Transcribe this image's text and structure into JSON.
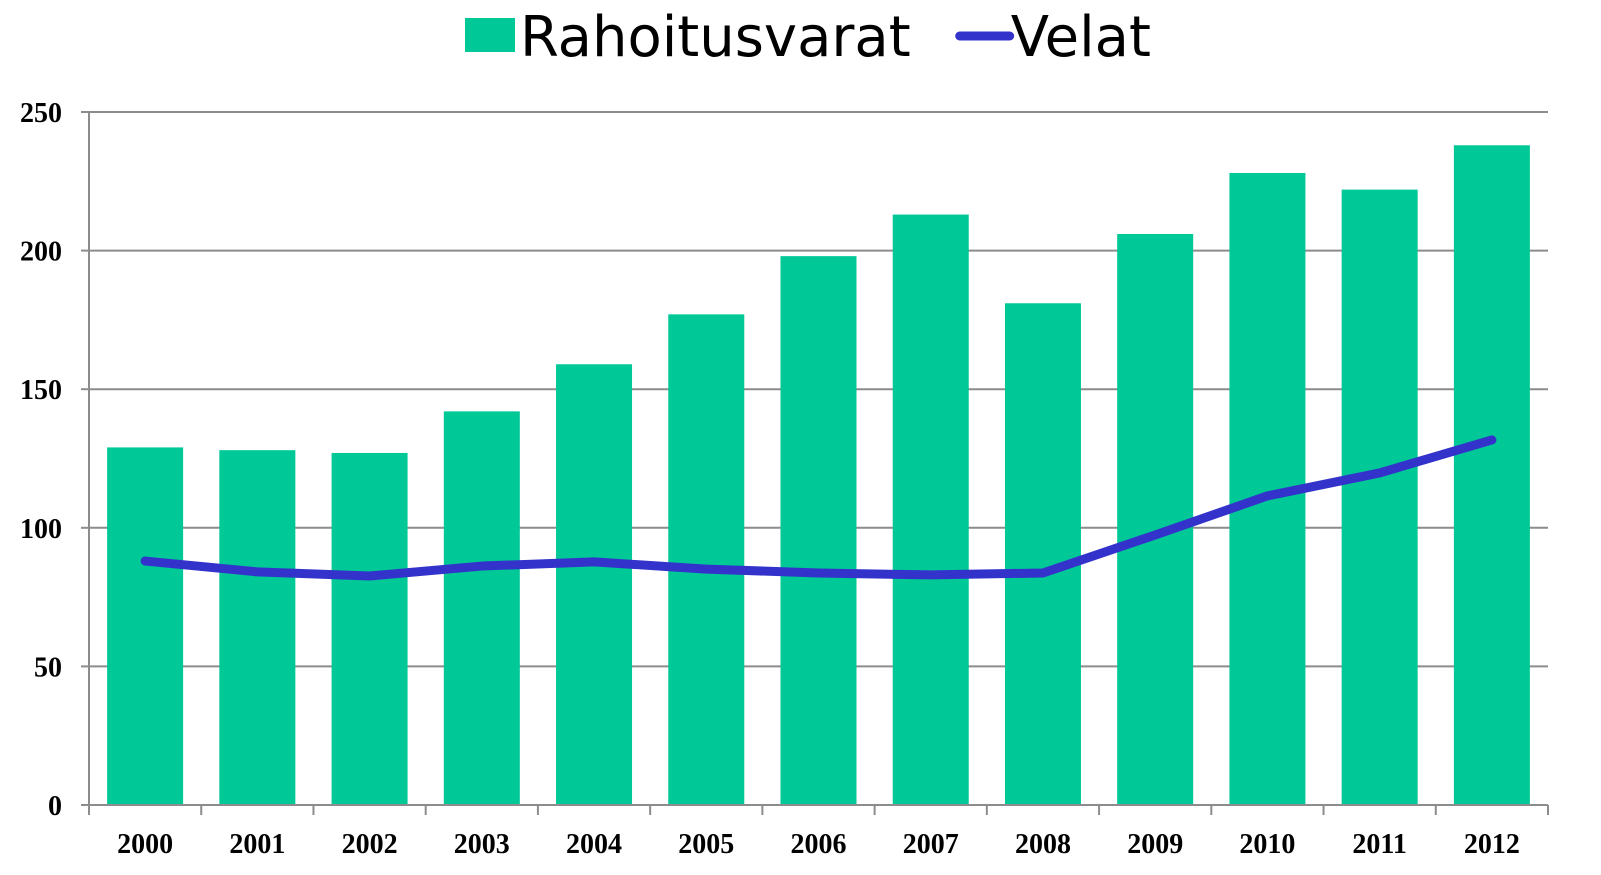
{
  "chart_data": {
    "type": "bar",
    "categories": [
      "2000",
      "2001",
      "2002",
      "2003",
      "2004",
      "2005",
      "2006",
      "2007",
      "2008",
      "2009",
      "2010",
      "2011",
      "2012"
    ],
    "series": [
      {
        "name": "Rahoitusvarat",
        "type": "bar",
        "color": "#00c896",
        "values": [
          129,
          128,
          127,
          142,
          159,
          177,
          198,
          213,
          181,
          206,
          228,
          222,
          238
        ]
      },
      {
        "name": "Velat",
        "type": "line",
        "color": "#3333cc",
        "values": [
          88,
          84.1,
          82.6,
          86.2,
          87.7,
          85.1,
          83.7,
          83,
          83.7,
          97.4,
          111.5,
          119.8,
          131.7
        ]
      }
    ],
    "ylim": [
      0,
      250
    ],
    "yticks": [
      0,
      50,
      100,
      150,
      200,
      250
    ],
    "grid": true,
    "legend": "top"
  }
}
